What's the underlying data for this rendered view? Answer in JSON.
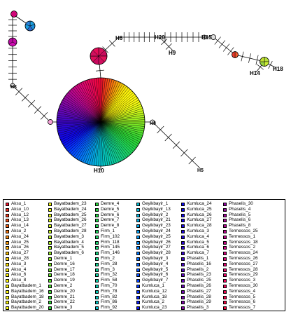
{
  "network": {
    "labels": [
      "H6",
      "H20",
      "H15",
      "H9",
      "H14",
      "H18",
      "H3",
      "H8",
      "H10",
      "H5"
    ]
  },
  "legend": {
    "columns": [
      [
        {
          "label": "Aksu_1",
          "color": "#f0142e"
        },
        {
          "label": "Aksu_10",
          "color": "#f1271f"
        },
        {
          "label": "Aksu_12",
          "color": "#f23a1a"
        },
        {
          "label": "Aksu_13",
          "color": "#f34d16"
        },
        {
          "label": "Aksu_14",
          "color": "#f46012"
        },
        {
          "label": "Aksu_2",
          "color": "#f5730f"
        },
        {
          "label": "Aksu_24",
          "color": "#f6860c"
        },
        {
          "label": "Aksu_25",
          "color": "#f7990a"
        },
        {
          "label": "Aksu_26",
          "color": "#f8ac09"
        },
        {
          "label": "Aksu_27",
          "color": "#f9bf08"
        },
        {
          "label": "Aksu_28",
          "color": "#fad207"
        },
        {
          "label": "Aksu_3",
          "color": "#fbe107"
        },
        {
          "label": "Aksu_4",
          "color": "#fbea08"
        },
        {
          "label": "Aksu_6",
          "color": "#fcf009"
        },
        {
          "label": "Aksu_8",
          "color": "#fdf40a"
        },
        {
          "label": "Bayatbadem_1",
          "color": "#fef70b"
        },
        {
          "label": "Bayatbadem_16",
          "color": "#fff80c"
        },
        {
          "label": "Bayatbadem_18",
          "color": "#fef90d"
        },
        {
          "label": "Bayatbadem_2",
          "color": "#fdfa0e"
        },
        {
          "label": "Bayatbadem_20",
          "color": "#fcfb0f"
        }
      ],
      [
        {
          "label": "Bayatbadem_23",
          "color": "#f6fb10"
        },
        {
          "label": "Bayatbadem_24",
          "color": "#eefb12"
        },
        {
          "label": "Bayatbadem_25",
          "color": "#e4fb14"
        },
        {
          "label": "Bayatbadem_26",
          "color": "#daf916"
        },
        {
          "label": "Bayatbadem_27",
          "color": "#cff718"
        },
        {
          "label": "Bayatbadem_28",
          "color": "#c3f51a"
        },
        {
          "label": "Bayatbadem_3",
          "color": "#b7f31c"
        },
        {
          "label": "Bayatbadem_4",
          "color": "#abf11e"
        },
        {
          "label": "Bayatbadem_5",
          "color": "#9fef20"
        },
        {
          "label": "Bayatbadem_6",
          "color": "#93ed22"
        },
        {
          "label": "Demre_1",
          "color": "#87eb24"
        },
        {
          "label": "Demre_16",
          "color": "#7be926"
        },
        {
          "label": "Demre_17",
          "color": "#6fe728"
        },
        {
          "label": "Demre_18",
          "color": "#63e52a"
        },
        {
          "label": "Demre_19",
          "color": "#57e32c"
        },
        {
          "label": "Demre_2",
          "color": "#4be12e"
        },
        {
          "label": "Demre_20",
          "color": "#3fdf30"
        },
        {
          "label": "Demre_21",
          "color": "#36dd32"
        },
        {
          "label": "Demre_22",
          "color": "#30db34"
        },
        {
          "label": "Demre_3",
          "color": "#2cd936"
        }
      ],
      [
        {
          "label": "Demre_4",
          "color": "#28d83a"
        },
        {
          "label": "Demre_5",
          "color": "#24d740"
        },
        {
          "label": "Demre_6",
          "color": "#22d646"
        },
        {
          "label": "Demre_7",
          "color": "#20d54d"
        },
        {
          "label": "Demre_8",
          "color": "#1ed454"
        },
        {
          "label": "Firm_1",
          "color": "#1cd35c"
        },
        {
          "label": "Firm_102",
          "color": "#1ad264"
        },
        {
          "label": "Firm_118",
          "color": "#18d16c"
        },
        {
          "label": "Firm_145",
          "color": "#16d074"
        },
        {
          "label": "Firm_146",
          "color": "#14cf7c"
        },
        {
          "label": "Firm_2",
          "color": "#12ce84"
        },
        {
          "label": "Firm_28",
          "color": "#10cd8c"
        },
        {
          "label": "Firm_3",
          "color": "#0ecc94"
        },
        {
          "label": "Firm_32",
          "color": "#0ccb9c"
        },
        {
          "label": "Firm_58",
          "color": "#0acaa4"
        },
        {
          "label": "Firm_70",
          "color": "#08c9ac"
        },
        {
          "label": "Firm_78",
          "color": "#06c8b4"
        },
        {
          "label": "Firm_82",
          "color": "#05c7bc"
        },
        {
          "label": "Firm_86",
          "color": "#04c6c4"
        },
        {
          "label": "Firm_92",
          "color": "#04c2cb"
        }
      ],
      [
        {
          "label": "Geyikbayir_1",
          "color": "#04bed2"
        },
        {
          "label": "Geyikbayir_13",
          "color": "#04b8d8"
        },
        {
          "label": "Geyikbayir_2",
          "color": "#04b2de"
        },
        {
          "label": "Geyikbayir_21",
          "color": "#04abe3"
        },
        {
          "label": "Geyikbayir_23",
          "color": "#04a3e8"
        },
        {
          "label": "Geyikbayir_24",
          "color": "#049bec"
        },
        {
          "label": "Geyikbayir_25",
          "color": "#0492f0"
        },
        {
          "label": "Geyikbayir_26",
          "color": "#0489f3"
        },
        {
          "label": "Geyikbayir_27",
          "color": "#047ff6"
        },
        {
          "label": "Geyikbayir_28",
          "color": "#0475f8"
        },
        {
          "label": "Geyikbayir_3",
          "color": "#046bfa"
        },
        {
          "label": "Geyikbayir_4",
          "color": "#0461fb"
        },
        {
          "label": "Geyikbayir_5",
          "color": "#0457fc"
        },
        {
          "label": "Geyikbayir_6",
          "color": "#044dfc"
        },
        {
          "label": "Geyikbayir_7",
          "color": "#0443fc"
        },
        {
          "label": "Kumluca_1",
          "color": "#0439fb"
        },
        {
          "label": "Kumluca_12",
          "color": "#042ffa"
        },
        {
          "label": "Kumluca_18",
          "color": "#0625f8"
        },
        {
          "label": "Kumluca_2",
          "color": "#081bf6"
        },
        {
          "label": "Kumluca_23",
          "color": "#0a12f3"
        }
      ],
      [
        {
          "label": "Kumluca_24",
          "color": "#0c0af0"
        },
        {
          "label": "Kumluca_25",
          "color": "#0e06ec"
        },
        {
          "label": "Kumluca_26",
          "color": "#1206e8"
        },
        {
          "label": "Kumluca_27",
          "color": "#1606e4"
        },
        {
          "label": "Kumluca_28",
          "color": "#1a06e0"
        },
        {
          "label": "Kumluca_3",
          "color": "#2006dc"
        },
        {
          "label": "Kumluca_4",
          "color": "#2606d8"
        },
        {
          "label": "Kumluca_5",
          "color": "#2c06d4"
        },
        {
          "label": "Kumluca_6",
          "color": "#3206d0"
        },
        {
          "label": "Kumluca_7",
          "color": "#3806cc"
        },
        {
          "label": "Phaselis_1",
          "color": "#4006c8"
        },
        {
          "label": "Phaselis_16",
          "color": "#4806c4"
        },
        {
          "label": "Phaselis_2",
          "color": "#5006c0"
        },
        {
          "label": "Phaselis_23",
          "color": "#5806bc"
        },
        {
          "label": "Phaselis_25",
          "color": "#6006b8"
        },
        {
          "label": "Phaselis_26",
          "color": "#6806b4"
        },
        {
          "label": "Phaselis_27",
          "color": "#7006b0"
        },
        {
          "label": "Phaselis_28",
          "color": "#7806ac"
        },
        {
          "label": "Phaselis_29",
          "color": "#8006a8"
        },
        {
          "label": "Phaselis_3",
          "color": "#8806a4"
        }
      ],
      [
        {
          "label": "Phaselis_30",
          "color": "#9006a0"
        },
        {
          "label": "Phaselis_4",
          "color": "#98069c"
        },
        {
          "label": "Phaselis_5",
          "color": "#a00698"
        },
        {
          "label": "Phaselis_6",
          "color": "#a80694"
        },
        {
          "label": "Phaselis_8",
          "color": "#b00690"
        },
        {
          "label": "Termessos_25",
          "color": "#b8068c"
        },
        {
          "label": "Termessos_1",
          "color": "#c00688"
        },
        {
          "label": "Termessos_18",
          "color": "#c70684"
        },
        {
          "label": "Termessos_2",
          "color": "#cd0680"
        },
        {
          "label": "Termessos_24",
          "color": "#d3067b"
        },
        {
          "label": "Termessos_26",
          "color": "#d90676"
        },
        {
          "label": "Termessos_27",
          "color": "#de0671"
        },
        {
          "label": "Termessos_28",
          "color": "#e2066b"
        },
        {
          "label": "Termessos_29",
          "color": "#e60665"
        },
        {
          "label": "Termessos_3",
          "color": "#e9065f"
        },
        {
          "label": "Termessos_30",
          "color": "#ec0658"
        },
        {
          "label": "Termessos_4",
          "color": "#ee0651"
        },
        {
          "label": "Termessos_5",
          "color": "#f0064a"
        },
        {
          "label": "Termessos_6",
          "color": "#f10642"
        },
        {
          "label": "Termessos_7",
          "color": "#f2063a"
        }
      ]
    ]
  }
}
